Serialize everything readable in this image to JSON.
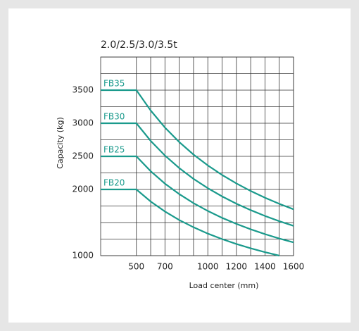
{
  "chart_data": {
    "type": "line",
    "title": "2.0/2.5/3.0/3.5t",
    "x_label": "Load center (mm)",
    "y_label": "Capacity (kg)",
    "x": [
      250,
      500,
      600,
      700,
      800,
      900,
      1000,
      1100,
      1200,
      1300,
      1400,
      1500,
      1600
    ],
    "series": [
      {
        "name": "FB35",
        "color": "#1a9a8c",
        "values": [
          3500,
          3500,
          3193,
          2935,
          2716,
          2527,
          2363,
          2219,
          2091,
          1977,
          1875,
          1783,
          1700
        ]
      },
      {
        "name": "FB30",
        "color": "#1a9a8c",
        "values": [
          3000,
          3000,
          2734,
          2512,
          2323,
          2160,
          2019,
          1895,
          1785,
          1688,
          1600,
          1521,
          1450
        ]
      },
      {
        "name": "FB25",
        "color": "#1a9a8c",
        "values": [
          2500,
          2500,
          2276,
          2088,
          1930,
          1793,
          1675,
          1571,
          1480,
          1398,
          1325,
          1259,
          1200
        ]
      },
      {
        "name": "FB20",
        "color": "#1a9a8c",
        "values": [
          2000,
          2000,
          1818,
          1667,
          1538,
          1429,
          1333,
          1250,
          1176,
          1111,
          1053,
          1000,
          null
        ]
      }
    ],
    "xlim": [
      250,
      1600
    ],
    "ylim": [
      1000,
      4000
    ],
    "xticks": [
      500,
      700,
      1000,
      1200,
      1400,
      1600
    ],
    "yticks": [
      1000,
      2000,
      2500,
      3000,
      3500
    ],
    "xgrid": [
      500,
      600,
      700,
      800,
      900,
      1000,
      1100,
      1200,
      1300,
      1400,
      1500,
      1600
    ],
    "ygrid": [
      1000,
      1250,
      1500,
      1750,
      2000,
      2250,
      2500,
      2750,
      3000,
      3250,
      3500,
      3750,
      4000
    ],
    "grid": true
  }
}
